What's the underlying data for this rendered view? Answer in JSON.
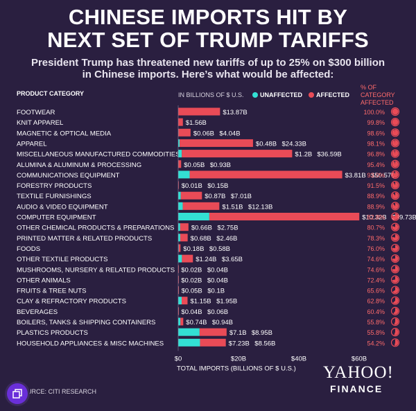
{
  "header": {
    "title_line1": "CHINESE IMPORTS HIT BY",
    "title_line2": "NEXT SET OF TRUMP TARIFFS",
    "subtitle_line1": "President Trump has threatened new tariffs of up to 25% on $300 billion",
    "subtitle_line2": "in Chinese imports. Here’s what would be affected:"
  },
  "columns": {
    "category": "PRODUCT CATEGORY",
    "units": "IN BILLIONS OF $ U.S.",
    "unaffected": "UNAFFECTED",
    "affected": "AFFECTED",
    "pct_line1": "% OF CATEGORY",
    "pct_line2": "AFFECTED"
  },
  "colors": {
    "background": "#2a1f40",
    "unaffected": "#33e0d4",
    "affected": "#e94b57",
    "text": "#ffffff",
    "pct_text": "#ff6b6b"
  },
  "footer": {
    "source": "SOURCE: CITI RESEARCH",
    "logo_line1": "YAHOO!",
    "logo_line2": "FINANCE"
  },
  "chart_data": {
    "type": "bar",
    "orientation": "horizontal",
    "stacked": true,
    "xlabel": "TOTAL IMPORTS (BILLIONS OF $ U.S.)",
    "xlim": [
      0,
      60
    ],
    "x_ticks": [
      "$0",
      "$20B",
      "$40B",
      "$60B"
    ],
    "legend_position": "top",
    "categories": [
      "FOOTWEAR",
      "KNIT APPAREL",
      "MAGNETIC & OPTICAL MEDIA",
      "APPAREL",
      "MISCELLANEOUS MANUFACTURED COMMODITIES",
      "ALUMINA & ALUMINUM & PROCESSING",
      "COMMUNICATIONS EQUIPMENT",
      "FORESTRY PRODUCTS",
      "TEXTILE FURNISHINGS",
      "AUDIO & VIDEO EQUIPMENT",
      "COMPUTER EQUIPMENT",
      "OTHER CHEMICAL PRODUCTS & PREPARATIONS",
      "PRINTED MATTER & RELATED PRODUCTS",
      "FOODS",
      "OTHER TEXTILE PRODUCTS",
      "MUSHROOMS, NURSERY & RELATED PRODUCTS",
      "OTHER ANIMALS",
      "FRUITS & TREE NUTS",
      "CLAY & REFRACTORY PRODUCTS",
      "BEVERAGES",
      "BOILERS, TANKS & SHIPPING CONTAINERS",
      "PLASTICS PRODUCTS",
      "HOUSEHOLD APPLIANCES & MISC MACHINES"
    ],
    "series": [
      {
        "name": "UNAFFECTED",
        "values": [
          null,
          null,
          0.06,
          0.48,
          1.2,
          0.05,
          3.81,
          0.01,
          0.87,
          1.51,
          10.32,
          0.66,
          0.68,
          0.18,
          1.24,
          0.02,
          0.02,
          0.05,
          1.15,
          0.04,
          0.74,
          7.1,
          7.23
        ],
        "labels": [
          "",
          "",
          "$0.06B",
          "$0.48B",
          "$1.2B",
          "$0.05B",
          "$3.81B",
          "$0.01B",
          "$0.87B",
          "$1.51B",
          "$10.32B",
          "$0.66B",
          "$0.68B",
          "$0.18B",
          "$1.24B",
          "$0.02B",
          "$0.02B",
          "$0.05B",
          "$1.15B",
          "$0.04B",
          "$0.74B",
          "$7.1B",
          "$7.23B"
        ]
      },
      {
        "name": "AFFECTED",
        "values": [
          13.87,
          1.56,
          4.04,
          24.33,
          36.59,
          0.93,
          50.57,
          0.15,
          7.01,
          12.13,
          49.73,
          2.75,
          2.46,
          0.58,
          3.65,
          0.04,
          0.04,
          0.1,
          1.95,
          0.06,
          0.94,
          8.95,
          8.56
        ],
        "labels": [
          "$13.87B",
          "$1.56B",
          "$4.04B",
          "$24.33B",
          "$36.59B",
          "$0.93B",
          "$50.57B",
          "$0.15B",
          "$7.01B",
          "$12.13B",
          "$49.73B",
          "$2.75B",
          "$2.46B",
          "$0.58B",
          "$3.65B",
          "$0.04B",
          "$0.04B",
          "$0.1B",
          "$1.95B",
          "$0.06B",
          "$0.94B",
          "$8.95B",
          "$8.56B"
        ]
      }
    ],
    "pct_affected": [
      100.0,
      99.8,
      98.6,
      98.1,
      96.8,
      95.4,
      93.0,
      91.5,
      88.9,
      88.9,
      82.8,
      80.7,
      78.3,
      76.0,
      74.6,
      74.6,
      72.4,
      65.6,
      62.8,
      60.4,
      55.8,
      55.8,
      54.2
    ],
    "pct_labels": [
      "100.0%",
      "99.8%",
      "98.6%",
      "98.1%",
      "96.8%",
      "95.4%",
      "93.0%",
      "91.5%",
      "88.9%",
      "88.9%",
      "82.8%",
      "80.7%",
      "78.3%",
      "76.0%",
      "74.6%",
      "74.6%",
      "72.4%",
      "65.6%",
      "62.8%",
      "60.4%",
      "55.8%",
      "55.8%",
      "54.2%"
    ]
  }
}
